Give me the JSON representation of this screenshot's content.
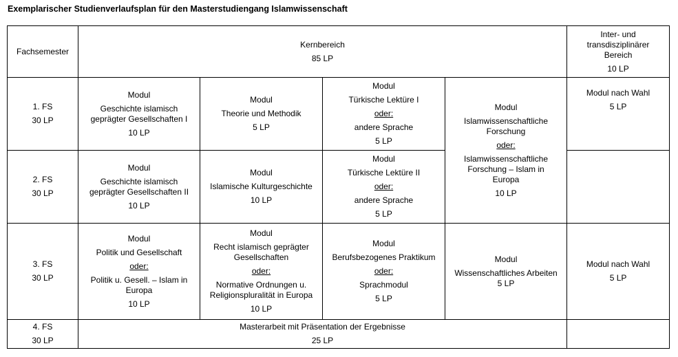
{
  "title": "Exemplarischer Studienverlaufsplan für den Masterstudiengang Islamwissenschaft",
  "header": {
    "semester_col": "Fachsemester",
    "kern": {
      "label": "Kernbereich",
      "lp": "85 LP"
    },
    "inter": {
      "label_1": "Inter- und",
      "label_2": "transdisziplinärer",
      "label_3": "Bereich",
      "lp": "10 LP"
    }
  },
  "modul_word": "Modul",
  "oder_word": "oder:",
  "rows": [
    {
      "fs": "1. FS",
      "lp": "30 LP",
      "c1": {
        "name_1": "Geschichte islamisch",
        "name_2": "geprägter Gesellschaften I",
        "lp": "10 LP"
      },
      "c2": {
        "name": "Theorie und Methodik",
        "lp": "5 LP"
      },
      "c3": {
        "name": "Türkische Lektüre I",
        "alt": "andere Sprache",
        "lp": "5 LP"
      },
      "inter": {
        "name": "Modul nach Wahl",
        "lp": "5 LP"
      }
    },
    {
      "fs": "2. FS",
      "lp": "30 LP",
      "c1": {
        "name_1": "Geschichte islamisch",
        "name_2": "geprägter Gesellschaften II",
        "lp": "10 LP"
      },
      "c2": {
        "name": "Islamische Kulturgeschichte",
        "lp": "10 LP"
      },
      "c3": {
        "name": "Türkische Lektüre II",
        "alt": "andere Sprache",
        "lp": "5 LP"
      }
    },
    {
      "fs": "3. FS",
      "lp": "30 LP",
      "c1": {
        "name": "Politik und Gesellschaft",
        "alt_1": "Politik u. Gesell. – Islam in",
        "alt_2": "Europa",
        "lp": "10 LP"
      },
      "c2": {
        "name_1": "Recht islamisch geprägter",
        "name_2": "Gesellschaften",
        "alt_1": "Normative Ordnungen u.",
        "alt_2": "Religionspluralität in Europa",
        "lp": "10 LP"
      },
      "c3": {
        "name": "Berufsbezogenes Praktikum",
        "alt": "Sprachmodul",
        "lp": "5 LP"
      },
      "c4": {
        "name": "Wissenschaftliches Arbeiten",
        "lp": "5 LP"
      },
      "inter": {
        "name": "Modul nach Wahl",
        "lp": "5 LP"
      }
    },
    {
      "fs": "4. FS",
      "lp": "30 LP",
      "master": {
        "name": "Masterarbeit mit Präsentation der Ergebnisse",
        "lp": "25 LP"
      }
    }
  ],
  "forschung": {
    "name_1": "Islamwissenschaftliche",
    "name_2": "Forschung",
    "alt_1": "Islamwissenschaftliche",
    "alt_2": "Forschung – Islam in",
    "alt_3": "Europa",
    "lp": "10 LP"
  }
}
